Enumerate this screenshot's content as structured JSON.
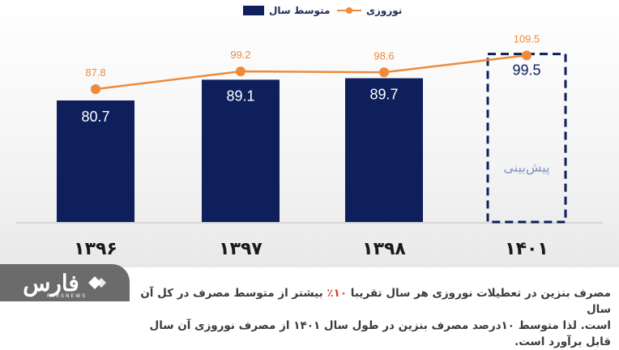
{
  "legend": {
    "avg_label": "متوسط سال",
    "nowruz_label": "نوروزی"
  },
  "colors": {
    "bar": "#0e1f5b",
    "line": "#ee8a3a",
    "forecast_label": "#7f95c8"
  },
  "chart_data": {
    "type": "bar",
    "categories": [
      "۱۳۹۶",
      "۱۳۹۷",
      "۱۳۹۸",
      "۱۴۰۱"
    ],
    "series": [
      {
        "name": "متوسط سال",
        "type": "bar",
        "values": [
          80.7,
          89.1,
          89.7,
          99.5
        ],
        "forecast": [
          false,
          false,
          false,
          true
        ]
      },
      {
        "name": "نوروزی",
        "type": "line",
        "values": [
          87.8,
          99.2,
          98.6,
          109.5
        ]
      }
    ],
    "forecast_label": "پیش‌بینی",
    "grid": false,
    "legend_position": "top-center"
  },
  "logo": {
    "text": "فارس",
    "sub": "FARSNEWS"
  },
  "caption": {
    "line1_a": "مصرف بنزین در تعطیلات نوروزی هر سال تقریبا ",
    "line1_highlight": "۱۰٪",
    "line1_b": " بیشتر از متوسط مصرف در کل آن سال",
    "line2": "است. لذا متوسط ۱۰درصد مصرف بنزین در طول سال ۱۴۰۱ از مصرف نوروزی آن سال قابل برآورد است."
  }
}
